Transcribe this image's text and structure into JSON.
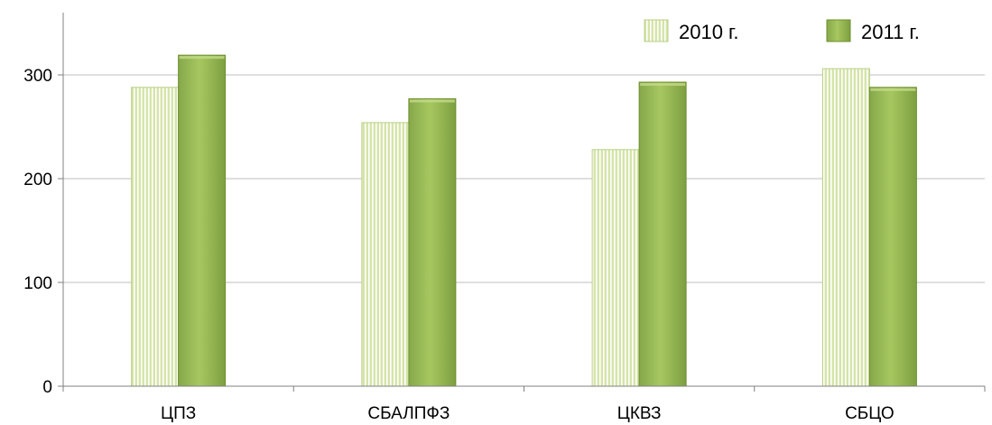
{
  "chart_data": {
    "type": "bar",
    "title": "",
    "xlabel": "",
    "ylabel": "",
    "categories": [
      "ЦПЗ",
      "СБАЛПФЗ",
      "ЦКВЗ",
      "СБЦО"
    ],
    "series": [
      {
        "name": "2010 г.",
        "values": [
          288,
          254,
          228,
          306
        ],
        "color": "#d5e4a8",
        "pattern": "vertical-stripes"
      },
      {
        "name": "2011 г.",
        "values": [
          319,
          277,
          293,
          288
        ],
        "color": "#9dbe58",
        "pattern": "solid"
      }
    ],
    "ylim": [
      0,
      360
    ],
    "yticks": [
      0,
      100,
      200,
      300
    ],
    "grid": true,
    "legend": "top-right",
    "colors": {
      "grid": "#bfbfbf",
      "axis": "#808080",
      "stripe": "#ffffff",
      "edge": "#6f8f2e"
    }
  }
}
